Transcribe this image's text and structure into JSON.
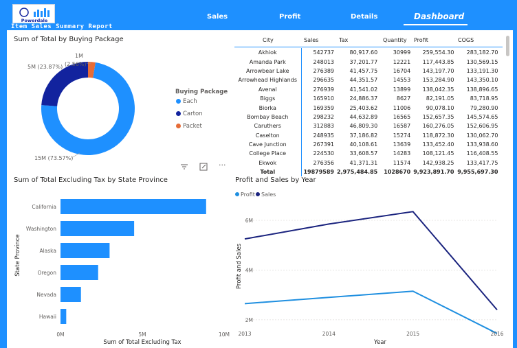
{
  "header": {
    "logo_text": "Powerdale",
    "report_title": "Item Sales Summary Report",
    "nav": [
      "Sales",
      "Profit",
      "Details",
      "Dashboard"
    ],
    "active_tab": "Dashboard"
  },
  "colors": {
    "primary": "#1e90ff",
    "dark": "#12239e",
    "orange": "#e66c37",
    "light_line": "#1f8fe0"
  },
  "donut": {
    "title": "Sum of Total by Buying Package",
    "legend_title": "Buying Package",
    "labels": {
      "packet": "1M",
      "packet_pct": "(2.56%)",
      "carton": "5M (23.87%)",
      "each": "15M (73.57%)"
    },
    "legend": [
      "Each",
      "Carton",
      "Packet"
    ],
    "toolbar": {
      "filter": "filter-icon",
      "focus": "focus-mode-icon",
      "more": "more-options-icon"
    }
  },
  "table": {
    "columns": [
      "City",
      "Sales",
      "Tax",
      "Quantity",
      "Profit",
      "COGS"
    ],
    "rows": [
      [
        "Akhiok",
        "542737",
        "80,917.60",
        "30999",
        "259,554.30",
        "283,182.70"
      ],
      [
        "Amanda Park",
        "248013",
        "37,201.77",
        "12221",
        "117,443.85",
        "130,569.15"
      ],
      [
        "Arrowbear Lake",
        "276389",
        "41,457.75",
        "16704",
        "143,197.70",
        "133,191.30"
      ],
      [
        "Arrowhead Highlands",
        "296635",
        "44,351.57",
        "14553",
        "153,284.90",
        "143,350.10"
      ],
      [
        "Avenal",
        "276939",
        "41,541.02",
        "13899",
        "138,042.35",
        "138,896.65"
      ],
      [
        "Biggs",
        "165910",
        "24,886.37",
        "8627",
        "82,191.05",
        "83,718.95"
      ],
      [
        "Biorka",
        "169359",
        "25,403.62",
        "11006",
        "90,078.10",
        "79,280.90"
      ],
      [
        "Bombay Beach",
        "298232",
        "44,632.89",
        "16565",
        "152,657.35",
        "145,574.65"
      ],
      [
        "Caruthers",
        "312883",
        "46,809.30",
        "16587",
        "160,276.05",
        "152,606.95"
      ],
      [
        "Caselton",
        "248935",
        "37,186.82",
        "15274",
        "118,872.30",
        "130,062.70"
      ],
      [
        "Cave Junction",
        "267391",
        "40,108.61",
        "13639",
        "133,452.40",
        "133,938.60"
      ],
      [
        "College Place",
        "224530",
        "33,608.57",
        "14283",
        "108,121.45",
        "116,408.55"
      ],
      [
        "Ekwok",
        "276356",
        "41,371.31",
        "11574",
        "142,938.25",
        "133,417.75"
      ]
    ],
    "total": [
      "Total",
      "19879589",
      "2,975,484.85",
      "1028670",
      "9,923,891.70",
      "9,955,697.30"
    ]
  },
  "chart_data": [
    {
      "type": "pie",
      "title": "Sum of Total by Buying Package",
      "legend_title": "Buying Package",
      "slices": [
        {
          "name": "Each",
          "value": 73.57,
          "label": "15M (73.57%)",
          "color": "#1e90ff"
        },
        {
          "name": "Carton",
          "value": 23.87,
          "label": "5M (23.87%)",
          "color": "#12239e"
        },
        {
          "name": "Packet",
          "value": 2.56,
          "label": "1M (2.56%)",
          "color": "#e66c37"
        }
      ]
    },
    {
      "type": "bar",
      "orientation": "horizontal",
      "title": "Sum of Total Excluding Tax by State Province",
      "xlabel": "Sum of Total Excluding Tax",
      "ylabel": "State Province",
      "categories": [
        "California",
        "Washington",
        "Alaska",
        "Oregon",
        "Nevada",
        "Hawaii"
      ],
      "values": [
        8.9,
        4.5,
        3.0,
        2.3,
        1.25,
        0.35
      ],
      "unit": "M",
      "xlim": [
        0,
        10
      ],
      "xticks": [
        "0M",
        "5M",
        "10M"
      ],
      "color": "#1e90ff"
    },
    {
      "type": "line",
      "title": "Profit and Sales by Year",
      "xlabel": "Year",
      "ylabel": "Profit and Sales",
      "x": [
        2013,
        2014,
        2015,
        2016
      ],
      "series": [
        {
          "name": "Profit",
          "values": [
            2.65,
            2.9,
            3.15,
            1.45
          ],
          "color": "#1f8fe0"
        },
        {
          "name": "Sales",
          "values": [
            5.25,
            5.85,
            6.35,
            2.4
          ],
          "color": "#1a237e"
        }
      ],
      "ylim": [
        1.5,
        6.8
      ],
      "yticks": [
        "2M",
        "4M",
        "6M"
      ],
      "unit": "M",
      "legend_position": "top-left"
    }
  ]
}
